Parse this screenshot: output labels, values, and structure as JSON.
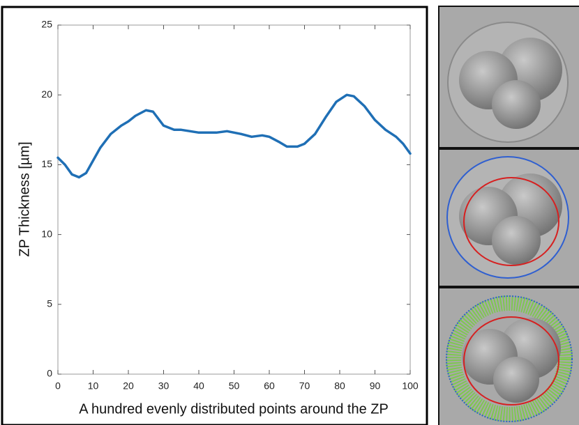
{
  "chart_data": {
    "type": "line",
    "xlabel": "A hundred evenly distributed points around the ZP",
    "ylabel": "ZP Thickness [µm]",
    "x": [
      0,
      2,
      4,
      6,
      8,
      10,
      12,
      15,
      18,
      20,
      22,
      25,
      27,
      30,
      33,
      35,
      40,
      45,
      48,
      52,
      55,
      58,
      60,
      63,
      65,
      68,
      70,
      73,
      76,
      79,
      82,
      84,
      87,
      90,
      93,
      96,
      98,
      100
    ],
    "series": [
      {
        "color": "#1f6fb5",
        "values": [
          15.5,
          15.0,
          14.3,
          14.1,
          14.4,
          15.3,
          16.2,
          17.2,
          17.8,
          18.1,
          18.5,
          18.9,
          18.8,
          17.8,
          17.5,
          17.5,
          17.3,
          17.3,
          17.4,
          17.2,
          17.0,
          17.1,
          17.0,
          16.6,
          16.3,
          16.3,
          16.5,
          17.2,
          18.4,
          19.5,
          20.0,
          19.9,
          19.2,
          18.2,
          17.5,
          17.0,
          16.5,
          15.8
        ]
      }
    ],
    "xlim": [
      0,
      100
    ],
    "xticks": [
      0,
      10,
      20,
      30,
      40,
      50,
      60,
      70,
      80,
      90,
      100
    ],
    "ylim": [
      0,
      25
    ],
    "yticks": [
      0,
      5,
      10,
      15,
      20,
      25
    ]
  }
}
